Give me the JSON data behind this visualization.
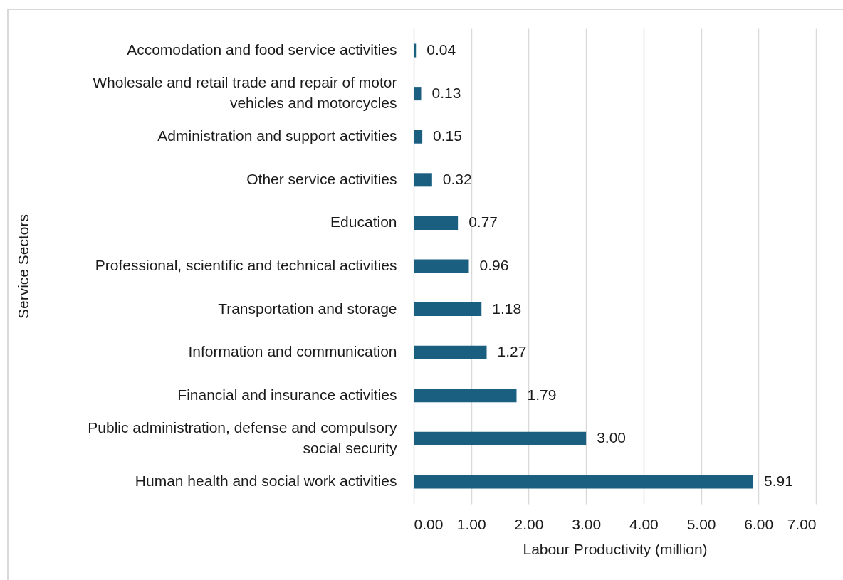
{
  "chart_data": {
    "type": "bar",
    "orientation": "horizontal",
    "xlabel": "Labour Productivity (million)",
    "ylabel": "Service Sectors",
    "categories": [
      "Accomodation and food service activities",
      "Wholesale and retail trade and repair of motor vehicles and motorcycles",
      "Administration and support activities",
      "Other service activities",
      "Education",
      "Professional, scientific and technical activities",
      "Transportation and storage",
      "Information and communication",
      "Financial and insurance activities",
      "Public administration, defense and compulsory social security",
      "Human health and social work activities"
    ],
    "values": [
      0.04,
      0.13,
      0.15,
      0.32,
      0.77,
      0.96,
      1.18,
      1.27,
      1.79,
      3.0,
      5.91
    ],
    "value_labels": [
      "0.04",
      "0.13",
      "0.15",
      "0.32",
      "0.77",
      "0.96",
      "1.18",
      "1.27",
      "1.79",
      "3.00",
      "5.91"
    ],
    "color": "#1a5e80",
    "xlim": [
      0,
      7
    ],
    "xticks": [
      {
        "value": 0,
        "label": "0.00"
      },
      {
        "value": 1,
        "label": "1.00"
      },
      {
        "value": 2,
        "label": "2.00"
      },
      {
        "value": 3,
        "label": "3.00"
      },
      {
        "value": 4,
        "label": "4.00"
      },
      {
        "value": 5,
        "label": "5.00"
      },
      {
        "value": 6,
        "label": "6.00"
      },
      {
        "value": 7,
        "label": "7.00"
      }
    ],
    "grid": "x"
  }
}
